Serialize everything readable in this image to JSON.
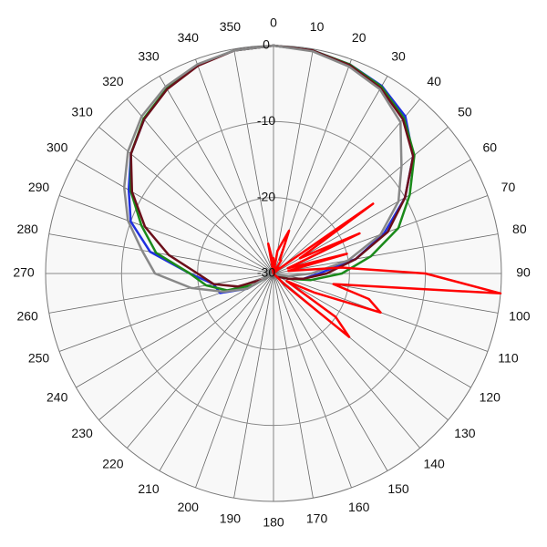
{
  "chart_data": {
    "type": "polar",
    "rlim": [
      -30,
      0
    ],
    "rticks": [
      -30,
      -20,
      -10,
      0
    ],
    "thetaticks": [
      0,
      10,
      20,
      30,
      40,
      50,
      60,
      70,
      80,
      90,
      100,
      110,
      120,
      130,
      140,
      150,
      160,
      170,
      180,
      190,
      200,
      210,
      220,
      230,
      240,
      250,
      260,
      270,
      280,
      290,
      300,
      310,
      320,
      330,
      340,
      350
    ],
    "grid": true,
    "series": [
      {
        "color": "#1f2fe0",
        "theta": [
          0,
          10,
          20,
          30,
          40,
          50,
          60,
          70,
          80,
          90,
          100,
          110,
          120,
          130,
          140,
          150,
          160,
          170,
          180,
          190,
          200,
          210,
          220,
          230,
          240,
          250,
          260,
          270,
          280,
          290,
          300,
          310,
          320,
          330,
          340,
          350
        ],
        "values": [
          0,
          -0.2,
          -0.7,
          -1.5,
          -3,
          -6,
          -10,
          -14.5,
          -19,
          -24,
          -26,
          -28,
          -29.5,
          -30,
          -30,
          -30,
          -30,
          -30,
          -30,
          -30,
          -30,
          -30,
          -30,
          -30,
          -26,
          -22.5,
          -22,
          -19,
          -13.5,
          -10,
          -8,
          -5.5,
          -3.5,
          -1.9,
          -0.8,
          -0.2
        ]
      },
      {
        "color": "#1a8a1a",
        "theta": [
          0,
          10,
          20,
          30,
          40,
          50,
          60,
          70,
          80,
          90,
          100,
          110,
          120,
          130,
          140,
          150,
          160,
          170,
          180,
          190,
          200,
          210,
          220,
          230,
          240,
          250,
          260,
          270,
          280,
          290,
          300,
          310,
          320,
          330,
          340,
          350
        ],
        "values": [
          0,
          -0.2,
          -0.7,
          -1.6,
          -3.3,
          -5.8,
          -9.3,
          -12.5,
          -17,
          -21,
          -25,
          -28,
          -29.5,
          -30,
          -30,
          -30,
          -30,
          -30,
          -30,
          -30,
          -30,
          -30,
          -30,
          -30,
          -27,
          -23.5,
          -21,
          -19,
          -14.3,
          -11.5,
          -8.3,
          -5.5,
          -3.4,
          -1.9,
          -0.8,
          -0.2
        ]
      },
      {
        "color": "#6b0f1a",
        "theta": [
          0,
          10,
          20,
          30,
          40,
          50,
          60,
          70,
          80,
          90,
          100,
          110,
          120,
          130,
          140,
          150,
          160,
          170,
          180,
          190,
          200,
          210,
          220,
          230,
          240,
          250,
          260,
          270,
          280,
          290,
          300,
          310,
          320,
          330,
          340,
          350
        ],
        "values": [
          0,
          -0.2,
          -0.8,
          -1.8,
          -3.5,
          -6,
          -10,
          -14,
          -19,
          -23,
          -26,
          -28,
          -29,
          -30,
          -30,
          -30,
          -30,
          -30,
          -30,
          -30,
          -30,
          -30,
          -30,
          -30,
          -28.5,
          -25,
          -22,
          -20,
          -16,
          -12,
          -8.5,
          -5.5,
          -3.5,
          -2,
          -0.9,
          -0.2
        ]
      },
      {
        "color": "#888888",
        "theta": [
          0,
          10,
          20,
          30,
          40,
          50,
          60,
          70,
          80,
          90,
          100,
          110,
          120,
          130,
          140,
          150,
          160,
          170,
          180,
          190,
          200,
          210,
          220,
          230,
          240,
          250,
          260,
          270,
          280,
          290,
          300,
          310,
          320,
          330,
          340,
          350
        ],
        "values": [
          0,
          -0.3,
          -1,
          -2,
          -4,
          -8,
          -11,
          -15,
          -20,
          -25,
          -28,
          -29.5,
          -30,
          -30,
          -30,
          -30,
          -30,
          -30,
          -30,
          -30,
          -30,
          -30,
          -30,
          -30,
          -26,
          -23,
          -19,
          -14.4,
          -12.4,
          -9.6,
          -7.3,
          -5,
          -3,
          -1.6,
          -0.7,
          -0.2
        ]
      },
      {
        "color": "#ff0000",
        "theta": [
          0,
          5,
          10,
          15,
          20,
          25,
          30,
          35,
          40,
          45,
          50,
          55,
          60,
          65,
          70,
          75,
          80,
          85,
          90,
          95,
          100,
          105,
          110,
          115,
          120,
          125,
          130,
          135,
          140,
          145,
          150,
          155,
          160,
          165,
          170,
          175,
          180,
          185,
          190,
          195,
          200,
          205,
          210,
          215,
          220,
          225,
          230,
          235,
          240,
          245,
          250,
          255,
          260,
          265,
          270,
          275,
          280,
          285,
          290,
          295,
          300,
          305,
          310,
          315,
          320,
          325,
          330,
          335,
          340,
          345,
          350,
          355
        ],
        "values": [
          -28,
          -30,
          -27,
          -26,
          -24,
          -28,
          -28,
          -30,
          -29,
          -30,
          -29,
          -14,
          -26,
          -17.5,
          -28,
          -20,
          -28,
          -21,
          -10,
          0,
          -22,
          -17,
          -15,
          -24,
          -28,
          -20,
          -17,
          -28,
          -30,
          -30,
          -30,
          -30,
          -30,
          -30,
          -30,
          -30,
          -30,
          -30,
          -30,
          -30,
          -30,
          -30,
          -30,
          -30,
          -30,
          -30,
          -30,
          -30,
          -30,
          -30,
          -30,
          -30,
          -30,
          -30,
          -30,
          -30,
          -30,
          -30,
          -30,
          -30,
          -30,
          -30,
          -30,
          -30,
          -30,
          -30,
          -30,
          -30,
          -30,
          -30,
          -26,
          -28
        ]
      }
    ]
  }
}
